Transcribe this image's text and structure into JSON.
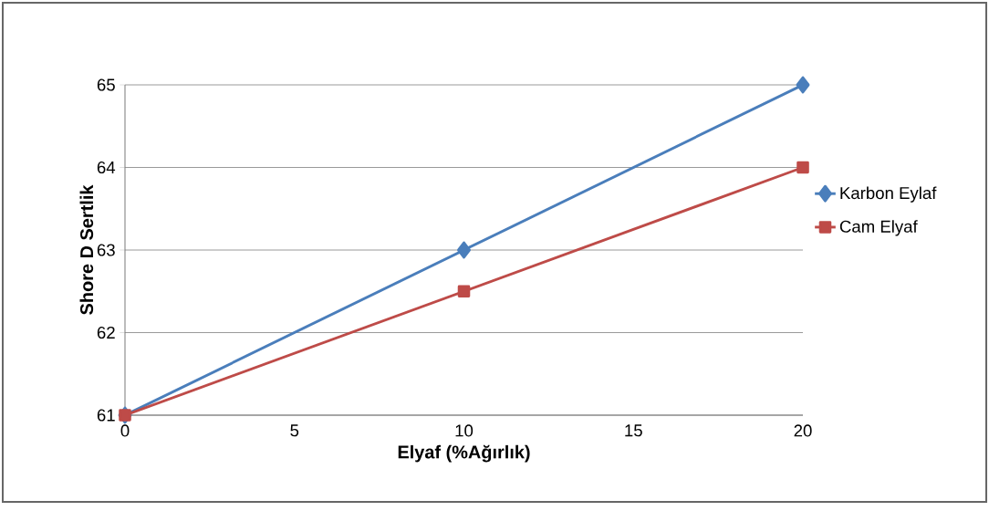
{
  "chart_data": {
    "type": "line",
    "xlabel": "Elyaf (%Ağırlık)",
    "ylabel": "Shore D Sertlik",
    "x": [
      0,
      10,
      20
    ],
    "series": [
      {
        "name": "Karbon Eylaf",
        "color": "#4a7ebb",
        "marker": "diamond",
        "values": [
          61,
          63,
          65
        ]
      },
      {
        "name": "Cam Elyaf",
        "color": "#be4b48",
        "marker": "square",
        "values": [
          61,
          62.5,
          64
        ]
      }
    ],
    "xlim": [
      0,
      20
    ],
    "ylim": [
      61,
      65
    ],
    "xticks": [
      0,
      5,
      10,
      15,
      20
    ],
    "yticks": [
      61,
      62,
      63,
      64,
      65
    ],
    "grid": "y",
    "legend": "right",
    "line_style": "solid"
  }
}
